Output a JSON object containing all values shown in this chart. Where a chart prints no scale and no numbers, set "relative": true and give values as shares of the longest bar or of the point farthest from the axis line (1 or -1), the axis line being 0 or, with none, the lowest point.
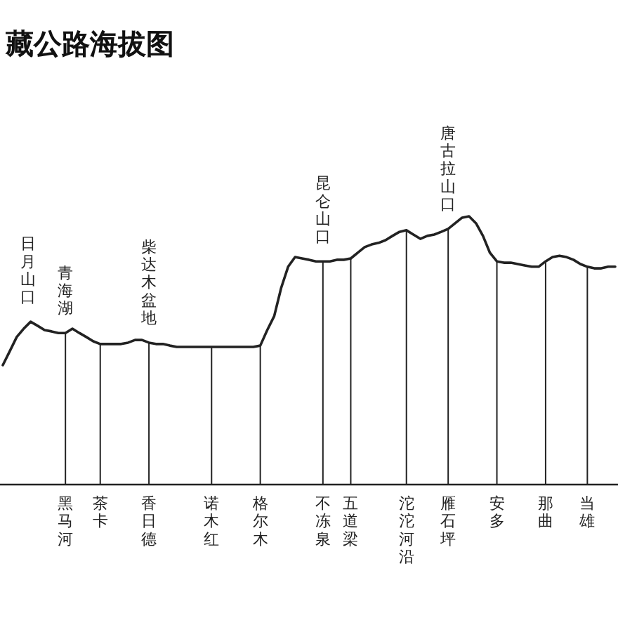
{
  "chart_data": {
    "type": "line",
    "title": "藏公路海拔图",
    "relative": true,
    "grid": "x",
    "color": "#222222",
    "categories": [
      null,
      null,
      null,
      null,
      null,
      null,
      null,
      null,
      null,
      "黑马河",
      null,
      null,
      null,
      null,
      "茶卡",
      null,
      null,
      null,
      null,
      null,
      null,
      "香日德",
      null,
      null,
      null,
      null,
      null,
      null,
      null,
      null,
      "诺木红",
      null,
      null,
      null,
      null,
      null,
      null,
      "格尔木",
      null,
      null,
      null,
      null,
      null,
      null,
      null,
      null,
      "不冻泉",
      null,
      null,
      null,
      "五道梁",
      null,
      null,
      null,
      null,
      null,
      null,
      null,
      "沱沱河沿",
      null,
      null,
      null,
      null,
      null,
      "雁石坪",
      null,
      null,
      null,
      null,
      null,
      null,
      "安多",
      null,
      null,
      null,
      null,
      null,
      null,
      "那曲",
      null,
      null,
      null,
      null,
      null,
      "当雄",
      null,
      null,
      null,
      null
    ],
    "values": [
      0.445,
      0.497,
      0.55,
      0.581,
      0.607,
      0.592,
      0.576,
      0.571,
      0.565,
      0.565,
      0.581,
      0.565,
      0.55,
      0.534,
      0.524,
      0.524,
      0.524,
      0.524,
      0.529,
      0.539,
      0.539,
      0.529,
      0.524,
      0.524,
      0.518,
      0.513,
      0.513,
      0.513,
      0.513,
      0.513,
      0.513,
      0.513,
      0.513,
      0.513,
      0.513,
      0.513,
      0.513,
      0.518,
      0.576,
      0.628,
      0.733,
      0.812,
      0.848,
      0.843,
      0.838,
      0.832,
      0.832,
      0.832,
      0.838,
      0.838,
      0.843,
      0.864,
      0.885,
      0.895,
      0.901,
      0.911,
      0.927,
      0.942,
      0.948,
      0.932,
      0.916,
      0.927,
      0.932,
      0.942,
      0.953,
      0.974,
      0.995,
      1,
      0.974,
      0.927,
      0.864,
      0.832,
      0.827,
      0.827,
      0.822,
      0.817,
      0.812,
      0.812,
      0.832,
      0.848,
      0.853,
      0.848,
      0.838,
      0.822,
      0.812,
      0.806,
      0.806,
      0.812,
      0.812
    ],
    "annotations": [
      {
        "text": "日月山口",
        "y": 0.607
      },
      {
        "text": "青海湖",
        "x": "黑马河",
        "y": 0.565
      },
      {
        "text": "柴达木盆地",
        "x": "香日德",
        "y": 0.529
      },
      {
        "text": "昆仑山口",
        "x": "不冻泉",
        "y": 0.832
      },
      {
        "text": "唐古拉山口",
        "x": "雁石坪",
        "y": 0.953
      }
    ]
  }
}
